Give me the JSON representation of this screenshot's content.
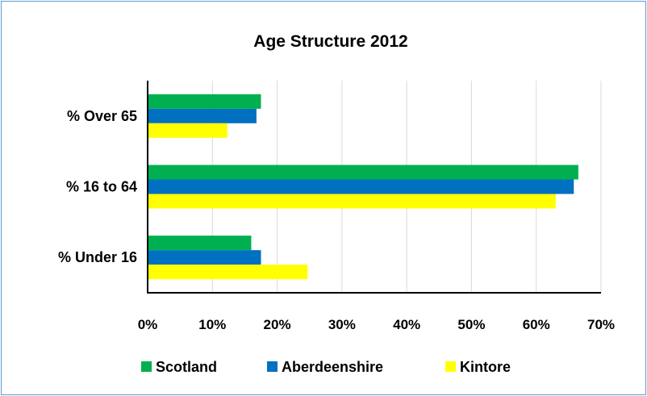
{
  "chart_data": {
    "type": "bar",
    "orientation": "horizontal",
    "title": "Age Structure 2012",
    "categories": [
      "% Over 65",
      "% 16 to 64",
      "% Under 16"
    ],
    "series": [
      {
        "name": "Scotland",
        "color": "#00b050",
        "values": [
          17.5,
          66.5,
          16.0
        ]
      },
      {
        "name": "Aberdeenshire",
        "color": "#0070c0",
        "values": [
          16.8,
          65.8,
          17.5
        ]
      },
      {
        "name": "Kintore",
        "color": "#ffff00",
        "values": [
          12.3,
          63.0,
          24.7
        ]
      }
    ],
    "x_ticks": [
      "0%",
      "10%",
      "20%",
      "30%",
      "40%",
      "50%",
      "60%",
      "70%"
    ],
    "xlim": [
      0,
      70
    ],
    "x_unit": "percent",
    "grid": true,
    "legend": "bottom"
  }
}
